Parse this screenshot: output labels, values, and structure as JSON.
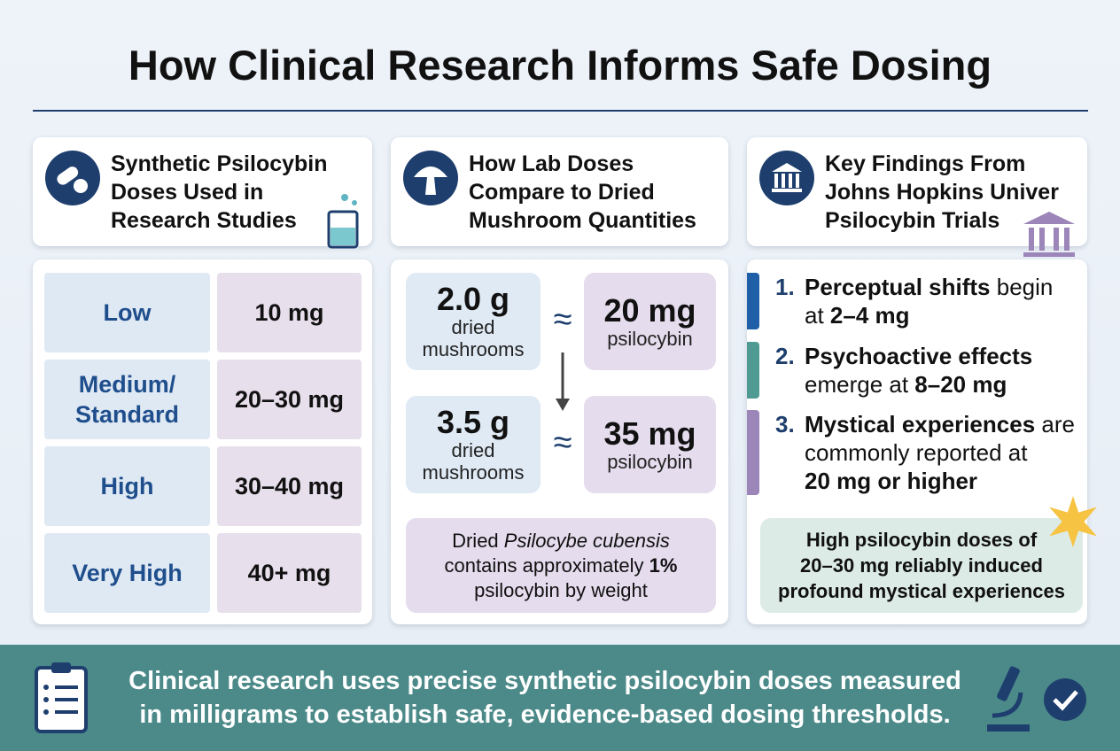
{
  "header": {
    "title": "How Clinical Research Informs Safe Dosing"
  },
  "columns": [
    {
      "heading": [
        "Synthetic Psilocybin",
        "Doses Used in",
        "Research Studies"
      ],
      "rows": [
        {
          "level": [
            "Low"
          ],
          "dose": "10 mg"
        },
        {
          "level": [
            "Medium/",
            "Standard"
          ],
          "dose": "20–30 mg"
        },
        {
          "level": [
            "High"
          ],
          "dose": "30–40 mg"
        },
        {
          "level": [
            "Very High"
          ],
          "dose": "40+ mg"
        }
      ]
    },
    {
      "heading": [
        "How Lab Doses",
        "Compare to Dried",
        "Mushroom Quantities"
      ],
      "comparisons": [
        {
          "amount": "2.0 g",
          "amount_unit": [
            "dried",
            "mushrooms"
          ],
          "approx": "≈",
          "dose": "20 mg",
          "dose_unit": "psilocybin"
        },
        {
          "amount": "3.5 g",
          "amount_unit": [
            "dried",
            "mushrooms"
          ],
          "approx": "≈",
          "dose": "35 mg",
          "dose_unit": "psilocybin"
        }
      ],
      "note": [
        [
          {
            "text": "Dried ",
            "style": "normal"
          },
          {
            "text": "Psilocybe cubensis",
            "style": "italic"
          }
        ],
        [
          {
            "text": "contains approximately ",
            "style": "normal"
          },
          {
            "text": "1%",
            "style": "bold"
          }
        ],
        [
          {
            "text": "psilocybin by weight",
            "style": "normal"
          }
        ]
      ]
    },
    {
      "heading": [
        "Key Findings From",
        "Johns Hopkins Univer",
        "Psilocybin Trials"
      ],
      "findings": [
        {
          "number": "1.",
          "color": "#1f5fa8",
          "lines": [
            [
              {
                "text": "Perceptual shifts",
                "style": "bold"
              },
              {
                "text": " begin",
                "style": "normal"
              }
            ],
            [
              {
                "text": "at ",
                "style": "normal"
              },
              {
                "text": "2–4 mg",
                "style": "bold"
              }
            ]
          ]
        },
        {
          "number": "2.",
          "color": "#4f9a92",
          "lines": [
            [
              {
                "text": "Psychoactive effects",
                "style": "bold"
              }
            ],
            [
              {
                "text": "emerge at ",
                "style": "normal"
              },
              {
                "text": "8–20 mg",
                "style": "bold"
              }
            ]
          ]
        },
        {
          "number": "3.",
          "color": "#9c85b8",
          "lines": [
            [
              {
                "text": "Mystical experiences",
                "style": "bold"
              },
              {
                "text": " are",
                "style": "normal"
              }
            ],
            [
              {
                "text": "commonly reported at",
                "style": "normal"
              }
            ],
            [
              {
                "text": "20 mg or higher",
                "style": "bold"
              }
            ]
          ]
        }
      ],
      "callout": [
        "High psilocybin doses of",
        "20–30 mg reliably induced",
        "profound mystical experiences"
      ]
    }
  ],
  "footer": {
    "lines": [
      "Clinical research uses precise synthetic psilocybin doses measured",
      "in milligrams to establish safe, evidence-based dosing thresholds."
    ]
  }
}
